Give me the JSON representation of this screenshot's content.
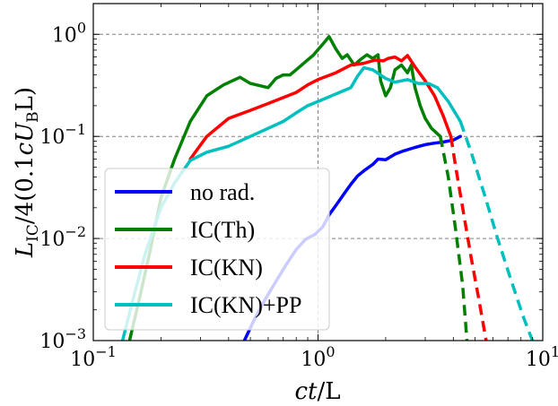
{
  "chart_data": {
    "type": "line",
    "xscale": "log",
    "yscale": "log",
    "xlim": [
      0.1,
      10
    ],
    "ylim": [
      0.001,
      2
    ],
    "grid": true,
    "grid_style": "dashed",
    "legend_position": "lower-left",
    "xlabel": {
      "main": "ct",
      "rest": "/L"
    },
    "ylabel": {
      "L": "L",
      "sub": "IC",
      "mid": "/4(0.1",
      "cU": "cU",
      "subB": "B",
      "end": "L)"
    },
    "x_ticks": [
      {
        "value": 0.1,
        "base": "10",
        "exp": "−1"
      },
      {
        "value": 1,
        "base": "10",
        "exp": "0"
      },
      {
        "value": 10,
        "base": "10",
        "exp": "1"
      }
    ],
    "y_ticks": [
      {
        "value": 0.001,
        "base": "10",
        "exp": "−3"
      },
      {
        "value": 0.01,
        "base": "10",
        "exp": "−2"
      },
      {
        "value": 0.1,
        "base": "10",
        "exp": "−1"
      },
      {
        "value": 1,
        "base": "10",
        "exp": "0"
      }
    ],
    "series": [
      {
        "name": "no rad.",
        "color": "#0000ff",
        "solid": [
          [
            0.47,
            0.001
          ],
          [
            0.52,
            0.0016
          ],
          [
            0.58,
            0.0025
          ],
          [
            0.65,
            0.0038
          ],
          [
            0.72,
            0.0055
          ],
          [
            0.8,
            0.0078
          ],
          [
            0.88,
            0.0098
          ],
          [
            0.97,
            0.011
          ],
          [
            1.05,
            0.013
          ],
          [
            1.12,
            0.017
          ],
          [
            1.2,
            0.021
          ],
          [
            1.3,
            0.027
          ],
          [
            1.4,
            0.034
          ],
          [
            1.5,
            0.041
          ],
          [
            1.6,
            0.046
          ],
          [
            1.75,
            0.053
          ],
          [
            1.85,
            0.06
          ],
          [
            2.0,
            0.059
          ],
          [
            2.2,
            0.067
          ],
          [
            2.4,
            0.072
          ],
          [
            2.7,
            0.078
          ],
          [
            3.0,
            0.083
          ],
          [
            3.3,
            0.086
          ],
          [
            3.6,
            0.088
          ],
          [
            4.0,
            0.092
          ],
          [
            4.3,
            0.1
          ]
        ],
        "dashed": []
      },
      {
        "name": "IC(Th)",
        "color": "#008000",
        "solid": [
          [
            0.145,
            0.001
          ],
          [
            0.16,
            0.0025
          ],
          [
            0.18,
            0.008
          ],
          [
            0.2,
            0.025
          ],
          [
            0.23,
            0.06
          ],
          [
            0.27,
            0.14
          ],
          [
            0.32,
            0.25
          ],
          [
            0.38,
            0.32
          ],
          [
            0.45,
            0.38
          ],
          [
            0.5,
            0.33
          ],
          [
            0.6,
            0.3
          ],
          [
            0.65,
            0.37
          ],
          [
            0.7,
            0.4
          ],
          [
            0.75,
            0.4
          ],
          [
            0.8,
            0.45
          ],
          [
            0.88,
            0.54
          ],
          [
            0.95,
            0.62
          ],
          [
            1.05,
            0.8
          ],
          [
            1.12,
            0.95
          ],
          [
            1.2,
            0.72
          ],
          [
            1.28,
            0.58
          ],
          [
            1.35,
            0.63
          ],
          [
            1.45,
            0.5
          ],
          [
            1.55,
            0.57
          ],
          [
            1.65,
            0.63
          ],
          [
            1.75,
            0.58
          ],
          [
            1.85,
            0.63
          ],
          [
            1.9,
            0.35
          ],
          [
            2.0,
            0.25
          ],
          [
            2.1,
            0.3
          ],
          [
            2.2,
            0.45
          ],
          [
            2.35,
            0.5
          ],
          [
            2.5,
            0.42
          ],
          [
            2.6,
            0.5
          ],
          [
            2.7,
            0.3
          ],
          [
            2.85,
            0.2
          ],
          [
            3.0,
            0.15
          ],
          [
            3.2,
            0.12
          ],
          [
            3.5,
            0.1
          ]
        ],
        "dashed": [
          [
            3.5,
            0.1
          ],
          [
            3.8,
            0.04
          ],
          [
            4.1,
            0.012
          ],
          [
            4.4,
            0.0035
          ],
          [
            4.6,
            0.001
          ]
        ]
      },
      {
        "name": "IC(KN)",
        "color": "#ff0000",
        "solid": [
          [
            0.27,
            0.06
          ],
          [
            0.32,
            0.1
          ],
          [
            0.4,
            0.15
          ],
          [
            0.5,
            0.18
          ],
          [
            0.6,
            0.21
          ],
          [
            0.7,
            0.24
          ],
          [
            0.8,
            0.27
          ],
          [
            0.9,
            0.32
          ],
          [
            1.0,
            0.36
          ],
          [
            1.2,
            0.42
          ],
          [
            1.4,
            0.5
          ],
          [
            1.6,
            0.52
          ],
          [
            1.8,
            0.56
          ],
          [
            1.95,
            0.55
          ],
          [
            2.05,
            0.58
          ],
          [
            2.2,
            0.6
          ],
          [
            2.35,
            0.55
          ],
          [
            2.5,
            0.62
          ],
          [
            2.7,
            0.48
          ],
          [
            3.0,
            0.35
          ],
          [
            3.3,
            0.25
          ],
          [
            3.6,
            0.16
          ],
          [
            3.9,
            0.1
          ]
        ],
        "dashed": [
          [
            3.9,
            0.1
          ],
          [
            4.1,
            0.05
          ],
          [
            4.4,
            0.02
          ],
          [
            4.8,
            0.0065
          ],
          [
            5.2,
            0.0025
          ],
          [
            5.6,
            0.001
          ]
        ]
      },
      {
        "name": "IC(KN)+PP",
        "color": "#00bfbf",
        "solid": [
          [
            0.135,
            0.001
          ],
          [
            0.15,
            0.0025
          ],
          [
            0.17,
            0.007
          ],
          [
            0.2,
            0.02
          ],
          [
            0.23,
            0.035
          ],
          [
            0.27,
            0.058
          ],
          [
            0.32,
            0.07
          ],
          [
            0.4,
            0.08
          ],
          [
            0.5,
            0.1
          ],
          [
            0.6,
            0.12
          ],
          [
            0.7,
            0.14
          ],
          [
            0.8,
            0.17
          ],
          [
            0.9,
            0.2
          ],
          [
            1.0,
            0.22
          ],
          [
            1.2,
            0.26
          ],
          [
            1.4,
            0.3
          ],
          [
            1.5,
            0.39
          ],
          [
            1.6,
            0.47
          ],
          [
            1.75,
            0.45
          ],
          [
            2.0,
            0.37
          ],
          [
            2.2,
            0.34
          ],
          [
            2.5,
            0.36
          ],
          [
            2.8,
            0.33
          ],
          [
            3.1,
            0.33
          ],
          [
            3.4,
            0.3
          ],
          [
            3.8,
            0.22
          ],
          [
            4.3,
            0.14
          ]
        ],
        "dashed": [
          [
            4.3,
            0.14
          ],
          [
            4.8,
            0.07
          ],
          [
            5.5,
            0.027
          ],
          [
            6.3,
            0.01
          ],
          [
            7.2,
            0.004
          ],
          [
            8.2,
            0.0017
          ],
          [
            9.0,
            0.001
          ]
        ]
      }
    ]
  }
}
